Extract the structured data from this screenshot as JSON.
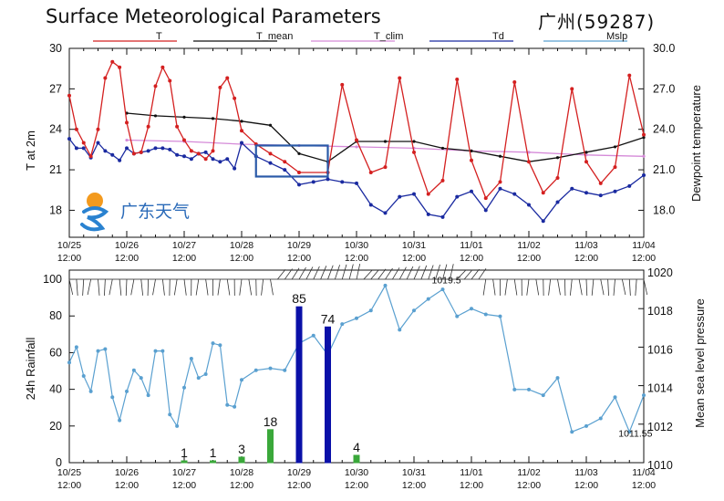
{
  "title": "Surface Meteorological Parameters",
  "station": "广州(59287)",
  "watermark": {
    "text": "广东天气"
  },
  "colors": {
    "T": "#d42020",
    "T_mean": "#111111",
    "T_clim": "#d58ad8",
    "Td": "#1a2aa0",
    "Mslp": "#5aa0d0",
    "rain_blue": "#0a10a8",
    "rain_green": "#3aa83a",
    "highlight_box": "#2a5aa8"
  },
  "chart_data": [
    {
      "type": "line",
      "panel": "top",
      "ylabel": "T at 2m",
      "y2label": "Dewpoint temperature",
      "ylim": [
        16,
        30
      ],
      "yticks": [
        18,
        21,
        24,
        27,
        30
      ],
      "y2ticks": [
        "18.0",
        "21.0",
        "24.0",
        "27.0",
        "30.0"
      ],
      "xlim": [
        0,
        10
      ],
      "x_unit": "days since 10/25 12:00",
      "xticks": [
        "10/25\n12:00",
        "10/26\n12:00",
        "10/27\n12:00",
        "10/28\n12:00",
        "10/29\n12:00",
        "10/30\n12:00",
        "10/31\n12:00",
        "11/01\n12:00",
        "11/02\n12:00",
        "11/03\n12:00",
        "11/04\n12:00"
      ],
      "legend": [
        "T",
        "T_mean",
        "T_clim",
        "Td",
        "Mslp"
      ],
      "series": [
        {
          "name": "T",
          "x": [
            0.0,
            0.125,
            0.25,
            0.375,
            0.5,
            0.625,
            0.75,
            0.875,
            1.0,
            1.125,
            1.25,
            1.375,
            1.5,
            1.625,
            1.75,
            1.875,
            2.0,
            2.125,
            2.25,
            2.375,
            2.5,
            2.625,
            2.75,
            2.875,
            3.0,
            3.25,
            3.5,
            3.75,
            4.0,
            4.5,
            4.75,
            5.0,
            5.25,
            5.5,
            5.75,
            6.0,
            6.25,
            6.5,
            6.75,
            7.0,
            7.25,
            7.5,
            7.75,
            8.0,
            8.25,
            8.5,
            8.75,
            9.0,
            9.25,
            9.5,
            9.75,
            10.0
          ],
          "values": [
            26.5,
            24.0,
            23.0,
            22.0,
            24.0,
            27.8,
            29.0,
            28.6,
            24.5,
            22.2,
            22.3,
            24.2,
            27.2,
            28.6,
            27.6,
            24.2,
            23.2,
            22.4,
            22.2,
            21.8,
            22.4,
            27.1,
            27.8,
            26.3,
            23.9,
            22.9,
            22.2,
            21.6,
            20.8,
            20.8,
            27.3,
            23.2,
            20.8,
            21.2,
            27.8,
            22.3,
            19.2,
            20.2,
            27.7,
            21.7,
            18.9,
            20.1,
            27.5,
            21.6,
            19.3,
            20.4,
            27.0,
            21.6,
            20.0,
            21.2,
            28.0,
            23.6
          ]
        },
        {
          "name": "T_mean",
          "x": [
            1.0,
            1.5,
            2.0,
            2.5,
            3.0,
            3.5,
            4.0,
            4.5,
            5.0,
            5.5,
            6.0,
            6.5,
            7.0,
            7.5,
            8.0,
            8.5,
            9.0,
            9.5,
            10.0
          ],
          "values": [
            25.2,
            25.0,
            24.9,
            24.8,
            24.6,
            24.3,
            22.2,
            21.6,
            23.1,
            23.1,
            23.1,
            22.6,
            22.4,
            22.0,
            21.6,
            21.9,
            22.3,
            22.7,
            23.4
          ]
        },
        {
          "name": "T_clim",
          "x": [
            1.0,
            2.0,
            3.0,
            4.0,
            5.0,
            6.0,
            7.0,
            8.0,
            9.0,
            10.0
          ],
          "values": [
            23.2,
            23.1,
            22.9,
            22.8,
            22.7,
            22.6,
            22.4,
            22.3,
            22.1,
            22.0
          ]
        },
        {
          "name": "Td",
          "x": [
            0.0,
            0.125,
            0.25,
            0.375,
            0.5,
            0.625,
            0.75,
            0.875,
            1.0,
            1.125,
            1.25,
            1.375,
            1.5,
            1.625,
            1.75,
            1.875,
            2.0,
            2.125,
            2.25,
            2.375,
            2.5,
            2.625,
            2.75,
            2.875,
            3.0,
            3.25,
            3.5,
            3.75,
            4.0,
            4.25,
            4.5,
            4.75,
            5.0,
            5.25,
            5.5,
            5.75,
            6.0,
            6.25,
            6.5,
            6.75,
            7.0,
            7.25,
            7.5,
            7.75,
            8.0,
            8.25,
            8.5,
            8.75,
            9.0,
            9.25,
            9.5,
            9.75,
            10.0
          ],
          "values": [
            23.3,
            22.6,
            22.6,
            21.9,
            23.0,
            22.4,
            22.1,
            21.7,
            22.6,
            22.2,
            22.3,
            22.4,
            22.6,
            22.6,
            22.5,
            22.1,
            22.0,
            21.8,
            22.2,
            22.3,
            21.8,
            21.6,
            21.8,
            21.1,
            23.0,
            22.0,
            21.5,
            21.0,
            19.9,
            20.1,
            20.3,
            20.1,
            20.0,
            18.4,
            17.8,
            19.0,
            19.2,
            17.7,
            17.5,
            19.0,
            19.4,
            18.0,
            19.6,
            19.2,
            18.4,
            17.2,
            18.6,
            19.6,
            19.3,
            19.1,
            19.4,
            19.8,
            20.6
          ]
        }
      ],
      "annotations": [
        "highlight box around 10/28 21:00 – 10/29 21:00"
      ]
    },
    {
      "type": "bar",
      "panel": "bottom",
      "ylabel": "24h Rainfall",
      "y2label": "Mean sea level pressure",
      "ylim": [
        0,
        105
      ],
      "yticks": [
        0,
        20,
        40,
        60,
        80,
        100
      ],
      "y2lim": [
        1010,
        1020
      ],
      "y2ticks": [
        1010,
        1012,
        1014,
        1016,
        1018,
        1020
      ],
      "xlim": [
        0,
        10
      ],
      "x_unit": "days since 10/25 12:00",
      "xticks": [
        "10/25\n12:00",
        "10/26\n12:00",
        "10/27\n12:00",
        "10/28\n12:00",
        "10/29\n12:00",
        "10/30\n12:00",
        "10/31\n12:00",
        "11/01\n12:00",
        "11/02\n12:00",
        "11/03\n12:00",
        "11/04\n12:00"
      ],
      "rain": [
        {
          "x": 2.0,
          "value": 1,
          "label": "1",
          "color": "green"
        },
        {
          "x": 2.5,
          "value": 1,
          "label": "1",
          "color": "green"
        },
        {
          "x": 3.0,
          "value": 3,
          "label": "3",
          "color": "green"
        },
        {
          "x": 3.5,
          "value": 18,
          "label": "18",
          "color": "green"
        },
        {
          "x": 4.0,
          "value": 85,
          "label": "85",
          "color": "blue"
        },
        {
          "x": 4.5,
          "value": 74,
          "label": "74",
          "color": "blue"
        },
        {
          "x": 5.0,
          "value": 4,
          "label": "4",
          "color": "green"
        }
      ],
      "mslp": {
        "name": "Mslp",
        "x": [
          0.0,
          0.125,
          0.25,
          0.375,
          0.5,
          0.625,
          0.75,
          0.875,
          1.0,
          1.125,
          1.25,
          1.375,
          1.5,
          1.625,
          1.75,
          1.875,
          2.0,
          2.125,
          2.25,
          2.375,
          2.5,
          2.625,
          2.75,
          2.875,
          3.0,
          3.25,
          3.5,
          3.75,
          4.0,
          4.25,
          4.5,
          4.75,
          5.0,
          5.25,
          5.5,
          5.75,
          6.0,
          6.25,
          6.5,
          6.75,
          7.0,
          7.25,
          7.5,
          7.75,
          8.0,
          8.25,
          8.5,
          8.75,
          9.0,
          9.25,
          9.5,
          9.75,
          10.0
        ],
        "values": [
          1015.2,
          1016.0,
          1014.5,
          1013.7,
          1015.8,
          1015.9,
          1013.4,
          1012.2,
          1013.7,
          1014.8,
          1014.4,
          1013.5,
          1015.8,
          1015.8,
          1012.5,
          1011.9,
          1013.9,
          1015.4,
          1014.4,
          1014.6,
          1016.2,
          1016.1,
          1013.0,
          1012.9,
          1014.3,
          1014.8,
          1014.9,
          1014.8,
          1016.2,
          1016.6,
          1015.6,
          1017.2,
          1017.5,
          1017.9,
          1019.2,
          1016.9,
          1017.9,
          1018.5,
          1019.0,
          1017.6,
          1018.0,
          1017.7,
          1017.6,
          1013.8,
          1013.8,
          1013.5,
          1014.4,
          1011.6,
          1011.9,
          1012.3,
          1013.4,
          1011.6,
          1013.5
        ]
      },
      "mslp_annotations": [
        {
          "text": "1019.5",
          "x": 6.5,
          "y": 1019.5,
          "color": "#d42020"
        },
        {
          "text": "1011.55",
          "x": 9.75,
          "y": 1011.55,
          "color": "#1a2aa0"
        }
      ],
      "wind_barbs_at": 100
    }
  ]
}
